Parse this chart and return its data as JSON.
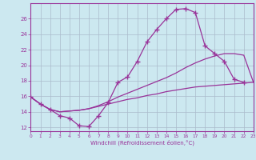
{
  "xlabel": "Windchill (Refroidissement éolien,°C)",
  "bg_color": "#cce8f0",
  "grid_color": "#aabbcc",
  "line_color": "#993399",
  "xmin": 0,
  "xmax": 23,
  "ymin": 11.5,
  "ymax": 28.0,
  "line1_x": [
    0,
    1,
    2,
    3,
    4,
    5,
    6,
    7,
    8,
    9,
    10,
    11,
    12,
    13,
    14,
    15,
    16,
    17,
    18,
    19,
    20,
    21,
    22
  ],
  "line1_y": [
    15.9,
    15.0,
    14.3,
    13.5,
    13.2,
    12.2,
    12.1,
    13.5,
    15.2,
    17.8,
    18.5,
    20.5,
    23.0,
    24.6,
    26.0,
    27.2,
    27.3,
    26.8,
    22.5,
    21.5,
    20.5,
    18.2,
    17.8
  ],
  "line2_x": [
    0,
    1,
    2,
    3,
    4,
    5,
    6,
    7,
    8,
    9,
    10,
    11,
    12,
    13,
    14,
    15,
    16,
    17,
    18,
    19,
    20,
    21,
    22,
    23
  ],
  "line2_y": [
    15.9,
    15.0,
    14.3,
    14.0,
    14.1,
    14.2,
    14.4,
    14.8,
    15.3,
    15.9,
    16.4,
    16.9,
    17.4,
    17.9,
    18.4,
    19.0,
    19.7,
    20.3,
    20.8,
    21.2,
    21.5,
    21.5,
    21.3,
    17.8
  ],
  "line3_x": [
    0,
    1,
    2,
    3,
    4,
    5,
    6,
    7,
    8,
    9,
    10,
    11,
    12,
    13,
    14,
    15,
    16,
    17,
    18,
    19,
    20,
    21,
    22,
    23
  ],
  "line3_y": [
    15.9,
    15.0,
    14.3,
    14.0,
    14.1,
    14.2,
    14.4,
    14.7,
    15.0,
    15.3,
    15.6,
    15.8,
    16.1,
    16.3,
    16.6,
    16.8,
    17.0,
    17.2,
    17.3,
    17.4,
    17.5,
    17.6,
    17.7,
    17.8
  ],
  "yticks": [
    12,
    14,
    16,
    18,
    20,
    22,
    24,
    26
  ],
  "xticks": [
    0,
    1,
    2,
    3,
    4,
    5,
    6,
    7,
    8,
    9,
    10,
    11,
    12,
    13,
    14,
    15,
    16,
    17,
    18,
    19,
    20,
    21,
    22,
    23
  ]
}
